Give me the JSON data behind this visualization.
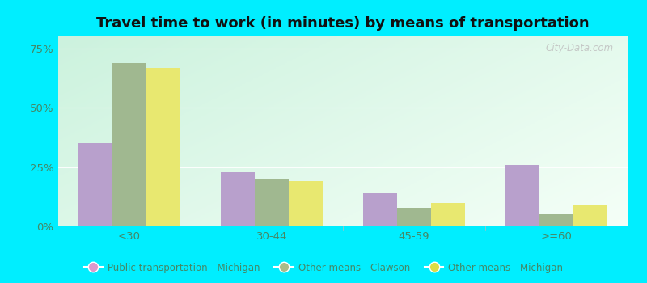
{
  "title": "Travel time to work (in minutes) by means of transportation",
  "categories": [
    "<30",
    "30-44",
    "45-59",
    ">=60"
  ],
  "series": {
    "Public transportation - Michigan": [
      35,
      23,
      14,
      26
    ],
    "Other means - Clawson": [
      69,
      20,
      8,
      5
    ],
    "Other means - Michigan": [
      67,
      19,
      10,
      9
    ]
  },
  "bar_colors": {
    "Public transportation - Michigan": "#b8a0cc",
    "Other means - Clawson": "#a0b890",
    "Other means - Michigan": "#e8e870"
  },
  "legend_marker_colors": {
    "Public transportation - Michigan": "#dd99cc",
    "Other means - Clawson": "#aabb88",
    "Other means - Michigan": "#dddd44"
  },
  "ylim": [
    0,
    80
  ],
  "yticks": [
    0,
    25,
    50,
    75
  ],
  "ytick_labels": [
    "0%",
    "25%",
    "50%",
    "75%"
  ],
  "bg_top_left": "#c0ecd8",
  "bg_bottom_right": "#f0fff8",
  "outer_background": "#00eeff",
  "tick_color": "#448866",
  "title_fontsize": 13,
  "watermark": "City-Data.com"
}
